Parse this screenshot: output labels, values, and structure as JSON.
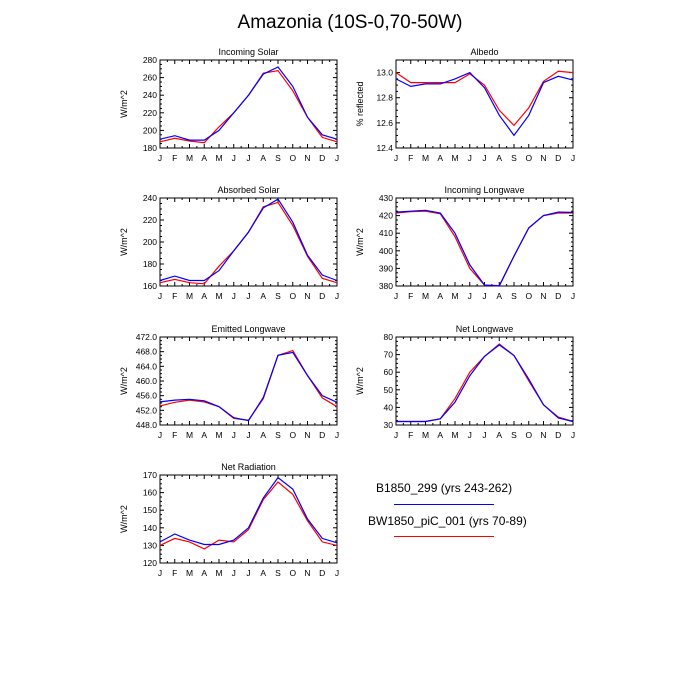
{
  "figure": {
    "title": "Amazonia (10S-0,70-50W)",
    "legend": [
      {
        "label": "B1850_299 (yrs 243-262)",
        "color": "#0000ff"
      },
      {
        "label": "BW1850_piC_001 (yrs 70-89)",
        "color": "#ff0000"
      }
    ]
  },
  "chart_data": [
    {
      "type": "line",
      "title": "Incoming Solar",
      "ylabel": "W/m^2",
      "categories": [
        "J",
        "F",
        "M",
        "A",
        "M",
        "J",
        "J",
        "A",
        "S",
        "O",
        "N",
        "D",
        "J"
      ],
      "ylim": [
        180,
        280
      ],
      "yticks": [
        "180",
        "200",
        "220",
        "240",
        "260",
        "280"
      ],
      "ytick_values": [
        180,
        200,
        220,
        240,
        260,
        280
      ],
      "series": [
        {
          "color": "#ff0000",
          "values": [
            187,
            191,
            188,
            186,
            204,
            220,
            240,
            265,
            268,
            245,
            215,
            192,
            187
          ]
        },
        {
          "color": "#0000ff",
          "values": [
            190,
            194,
            189,
            189,
            200,
            220,
            240,
            264,
            272,
            250,
            215,
            195,
            190
          ]
        }
      ]
    },
    {
      "type": "line",
      "title": "Albedo",
      "ylabel": "% reflected",
      "categories": [
        "J",
        "F",
        "M",
        "A",
        "M",
        "J",
        "J",
        "A",
        "S",
        "O",
        "N",
        "D",
        "J"
      ],
      "ylim": [
        12.4,
        13.1
      ],
      "yticks": [
        "12.4",
        "12.6",
        "12.8",
        "13.0"
      ],
      "ytick_values": [
        12.4,
        12.6,
        12.8,
        13.0
      ],
      "series": [
        {
          "color": "#ff0000",
          "values": [
            13.0,
            12.92,
            12.92,
            12.92,
            12.92,
            12.99,
            12.9,
            12.7,
            12.58,
            12.72,
            12.93,
            13.01,
            13.0
          ]
        },
        {
          "color": "#0000ff",
          "values": [
            12.95,
            12.89,
            12.91,
            12.91,
            12.95,
            13.0,
            12.88,
            12.66,
            12.5,
            12.66,
            12.92,
            12.97,
            12.94
          ]
        }
      ]
    },
    {
      "type": "line",
      "title": "Absorbed Solar",
      "ylabel": "W/m^2",
      "categories": [
        "J",
        "F",
        "M",
        "A",
        "M",
        "J",
        "J",
        "A",
        "S",
        "O",
        "N",
        "D",
        "J"
      ],
      "ylim": [
        160,
        240
      ],
      "yticks": [
        "160",
        "180",
        "200",
        "220",
        "240"
      ],
      "ytick_values": [
        160,
        180,
        200,
        220,
        240
      ],
      "series": [
        {
          "color": "#ff0000",
          "values": [
            163,
            166,
            163,
            162,
            178,
            192,
            209,
            232,
            236,
            215,
            187,
            167,
            163
          ]
        },
        {
          "color": "#0000ff",
          "values": [
            165,
            169,
            165,
            165,
            174,
            192,
            209,
            231,
            239,
            218,
            188,
            170,
            165
          ]
        }
      ]
    },
    {
      "type": "line",
      "title": "Incoming Longwave",
      "ylabel": "W/m^2",
      "categories": [
        "J",
        "F",
        "M",
        "A",
        "M",
        "J",
        "J",
        "A",
        "S",
        "O",
        "N",
        "D",
        "J"
      ],
      "ylim": [
        380,
        430
      ],
      "yticks": [
        "380",
        "390",
        "400",
        "410",
        "420",
        "430"
      ],
      "ytick_values": [
        380,
        390,
        400,
        410,
        420,
        430
      ],
      "series": [
        {
          "color": "#ff0000",
          "values": [
            421.5,
            422.2,
            422.5,
            421,
            408,
            390,
            380.5,
            380.2,
            397,
            413,
            420,
            421.5,
            421.5
          ]
        },
        {
          "color": "#0000ff",
          "values": [
            422,
            422.5,
            423,
            421.5,
            410,
            392,
            380.5,
            380,
            397,
            413,
            420,
            422,
            421.8
          ]
        }
      ]
    },
    {
      "type": "line",
      "title": "Emitted Longwave",
      "ylabel": "W/m^2",
      "categories": [
        "J",
        "F",
        "M",
        "A",
        "M",
        "J",
        "J",
        "A",
        "S",
        "O",
        "N",
        "D",
        "J"
      ],
      "ylim": [
        448,
        472
      ],
      "yticks": [
        "448.0",
        "452.0",
        "456.0",
        "460.0",
        "464.0",
        "468.0",
        "472.0"
      ],
      "ytick_values": [
        448,
        452,
        456,
        460,
        464,
        468,
        472
      ],
      "series": [
        {
          "color": "#ff0000",
          "values": [
            453.2,
            454.2,
            454.8,
            454.3,
            453.0,
            449.8,
            449.3,
            455.2,
            467.0,
            468.3,
            461.5,
            455.4,
            453.0
          ]
        },
        {
          "color": "#0000ff",
          "values": [
            454.3,
            454.8,
            455.0,
            454.6,
            453.0,
            450.0,
            449.2,
            455.5,
            467.0,
            467.8,
            461.5,
            456.0,
            454.2
          ]
        }
      ]
    },
    {
      "type": "line",
      "title": "Net Longwave",
      "ylabel": "W/m^2",
      "categories": [
        "J",
        "F",
        "M",
        "A",
        "M",
        "J",
        "J",
        "A",
        "S",
        "O",
        "N",
        "D",
        "J"
      ],
      "ylim": [
        30,
        80
      ],
      "yticks": [
        "30",
        "40",
        "50",
        "60",
        "70",
        "80"
      ],
      "ytick_values": [
        30,
        40,
        50,
        60,
        70,
        80
      ],
      "series": [
        {
          "color": "#ff0000",
          "values": [
            32,
            32,
            32,
            33.5,
            45,
            60,
            69,
            76,
            69.5,
            55,
            41.5,
            34.5,
            32
          ]
        },
        {
          "color": "#0000ff",
          "values": [
            32,
            32,
            32,
            33.5,
            43,
            58,
            69,
            75.5,
            69.5,
            56,
            41.5,
            34,
            32
          ]
        }
      ]
    },
    {
      "type": "line",
      "title": "Net Radiation",
      "ylabel": "W/m^2",
      "categories": [
        "J",
        "F",
        "M",
        "A",
        "M",
        "J",
        "J",
        "A",
        "S",
        "O",
        "N",
        "D",
        "J"
      ],
      "ylim": [
        120,
        170
      ],
      "yticks": [
        "120",
        "130",
        "140",
        "150",
        "160",
        "170"
      ],
      "ytick_values": [
        120,
        130,
        140,
        150,
        160,
        170
      ],
      "series": [
        {
          "color": "#ff0000",
          "values": [
            130,
            134,
            132,
            128,
            133,
            132,
            139,
            156,
            166,
            159,
            144,
            132,
            130
          ]
        },
        {
          "color": "#0000ff",
          "values": [
            132,
            136.5,
            133,
            130.5,
            130.5,
            133,
            140,
            157,
            168.5,
            162,
            145,
            134,
            131.5
          ]
        }
      ]
    }
  ]
}
